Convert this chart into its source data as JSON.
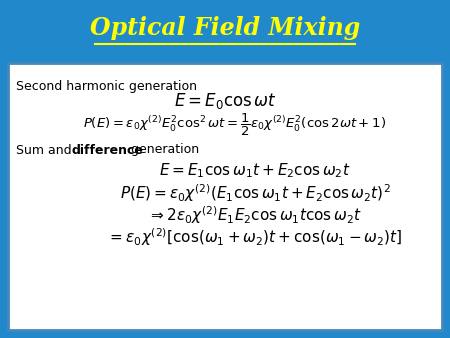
{
  "title": "Optical Field Mixing",
  "title_color": "#FFFF00",
  "title_underline_color": "#FFFF00",
  "bg_color": "#2288CC",
  "panel_bg": "#FFFFFF",
  "panel_edge_color": "#4488BB",
  "title_fontsize": 17,
  "eq_fontsize": 11,
  "label_fontsize": 9,
  "label1": "Second harmonic generation",
  "eq1": "$E = E_0 \\cos \\omega t$",
  "eq2": "$P(E) = \\varepsilon_0 \\chi^{(2)} E_0^2 \\cos^2 \\omega t = \\dfrac{1}{2} \\varepsilon_0 \\chi^{(2)} E_0^2 (\\cos 2\\omega t + 1)$",
  "eq3": "$E = E_1 \\cos \\omega_1 t + E_2 \\cos \\omega_2 t$",
  "eq4": "$P(E) = \\varepsilon_0 \\chi^{(2)} (E_1 \\cos \\omega_1 t + E_2 \\cos \\omega_2 t)^2$",
  "eq5": "$\\Rightarrow 2\\varepsilon_0 \\chi^{(2)} E_1 E_2 \\cos \\omega_1 t \\cos \\omega_2 t$",
  "eq6": "$= \\varepsilon_0 \\chi^{(2)} [\\cos(\\omega_1 + \\omega_2)t + \\cos(\\omega_1 - \\omega_2)t]$"
}
